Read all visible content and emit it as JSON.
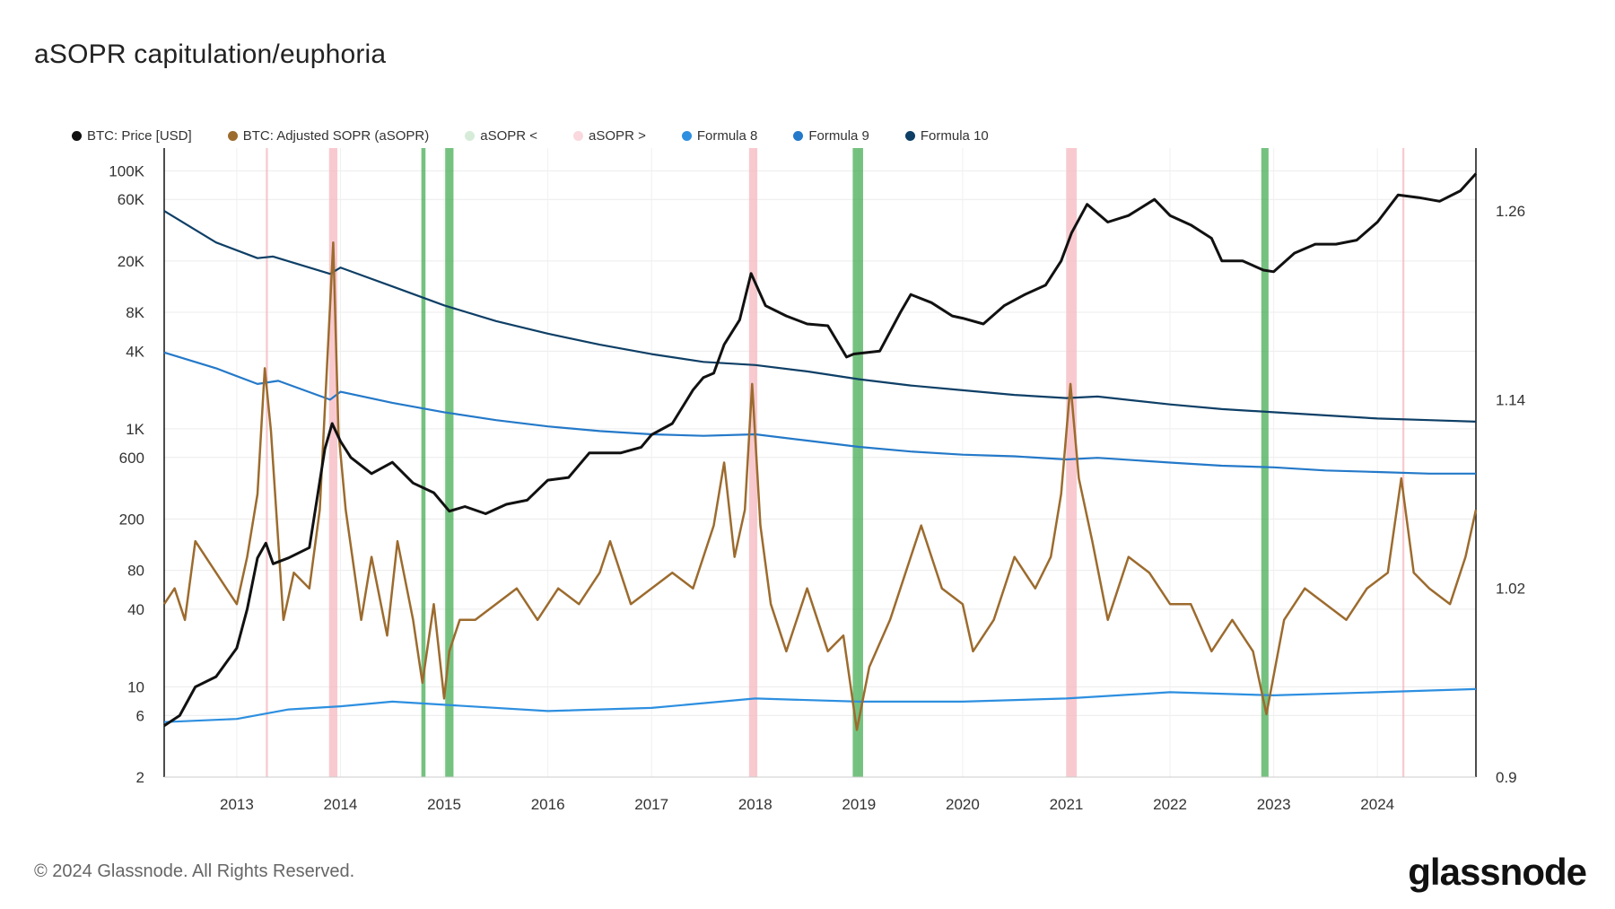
{
  "title": "aSOPR capitulation/euphoria",
  "footer": "© 2024 Glassnode. All Rights Reserved.",
  "brand": "glassnode",
  "legend": [
    {
      "label": "BTC: Price [USD]",
      "color": "#111111"
    },
    {
      "label": "BTC: Adjusted SOPR (aSOPR)",
      "color": "#9c6b2e"
    },
    {
      "label": "aSOPR <",
      "color": "#d6ecd8"
    },
    {
      "label": "aSOPR >",
      "color": "#f9d9dd"
    },
    {
      "label": "Formula 8",
      "color": "#2d8fe0"
    },
    {
      "label": "Formula 9",
      "color": "#2479c9"
    },
    {
      "label": "Formula 10",
      "color": "#0e3f66"
    }
  ],
  "chart_data": {
    "type": "line",
    "x_axis": {
      "ticks": [
        "2013",
        "2014",
        "2015",
        "2016",
        "2017",
        "2018",
        "2019",
        "2020",
        "2021",
        "2022",
        "2023",
        "2024"
      ],
      "range": [
        2012.3,
        2024.95
      ]
    },
    "y_left": {
      "scale": "log",
      "ticks": [
        "2",
        "6",
        "10",
        "40",
        "80",
        "200",
        "600",
        "1K",
        "4K",
        "8K",
        "20K",
        "60K",
        "100K"
      ],
      "tick_values": [
        2,
        6,
        10,
        40,
        80,
        200,
        600,
        1000,
        4000,
        8000,
        20000,
        60000,
        100000
      ],
      "range": [
        2,
        150000
      ]
    },
    "y_right": {
      "scale": "linear",
      "ticks": [
        "0.9",
        "1.02",
        "1.14",
        "1.26"
      ],
      "tick_values": [
        0.9,
        1.02,
        1.14,
        1.26
      ],
      "range": [
        0.9,
        1.3
      ]
    },
    "grid": true,
    "legend_position": "top-left",
    "green_bands": [
      [
        2014.78,
        2014.82
      ],
      [
        2015.01,
        2015.09
      ],
      [
        2018.94,
        2019.04
      ],
      [
        2022.88,
        2022.95
      ]
    ],
    "red_bands": [
      [
        2013.28,
        2013.3
      ],
      [
        2013.89,
        2013.97
      ],
      [
        2017.94,
        2018.02
      ],
      [
        2021.0,
        2021.1
      ],
      [
        2024.24,
        2024.26
      ]
    ],
    "series": [
      {
        "name": "BTC: Price [USD]",
        "axis": "left",
        "color": "#111111",
        "x": [
          2012.3,
          2012.45,
          2012.6,
          2012.8,
          2013.0,
          2013.1,
          2013.2,
          2013.28,
          2013.35,
          2013.5,
          2013.7,
          2013.85,
          2013.92,
          2014.0,
          2014.1,
          2014.3,
          2014.5,
          2014.7,
          2014.9,
          2015.05,
          2015.2,
          2015.4,
          2015.6,
          2015.8,
          2016.0,
          2016.2,
          2016.4,
          2016.5,
          2016.7,
          2016.9,
          2017.0,
          2017.2,
          2017.4,
          2017.5,
          2017.6,
          2017.7,
          2017.85,
          2017.96,
          2018.1,
          2018.3,
          2018.5,
          2018.7,
          2018.88,
          2018.95,
          2019.2,
          2019.4,
          2019.5,
          2019.7,
          2019.9,
          2020.0,
          2020.2,
          2020.4,
          2020.6,
          2020.8,
          2020.95,
          2021.05,
          2021.2,
          2021.4,
          2021.6,
          2021.85,
          2022.0,
          2022.2,
          2022.4,
          2022.5,
          2022.7,
          2022.9,
          2023.0,
          2023.2,
          2023.4,
          2023.6,
          2023.8,
          2024.0,
          2024.2,
          2024.4,
          2024.6,
          2024.8,
          2024.95
        ],
        "values": [
          5,
          6,
          10,
          12,
          20,
          40,
          100,
          130,
          90,
          100,
          120,
          700,
          1100,
          800,
          600,
          450,
          550,
          380,
          320,
          230,
          250,
          220,
          260,
          280,
          400,
          420,
          650,
          650,
          650,
          720,
          900,
          1100,
          2000,
          2500,
          2700,
          4500,
          7000,
          16000,
          9000,
          7500,
          6500,
          6300,
          3600,
          3800,
          4000,
          8000,
          11000,
          9500,
          7500,
          7200,
          6500,
          9000,
          11000,
          13000,
          20000,
          33000,
          55000,
          40000,
          45000,
          60000,
          45000,
          38000,
          30000,
          20000,
          20000,
          17000,
          16500,
          23000,
          27000,
          27000,
          29000,
          40000,
          65000,
          62000,
          58000,
          70000,
          95000
        ]
      },
      {
        "name": "BTC: Adjusted SOPR (aSOPR)",
        "axis": "right",
        "color": "#9c6b2e",
        "x": [
          2012.3,
          2012.4,
          2012.5,
          2012.6,
          2012.8,
          2012.9,
          2013.0,
          2013.1,
          2013.2,
          2013.27,
          2013.33,
          2013.45,
          2013.55,
          2013.7,
          2013.8,
          2013.9,
          2013.93,
          2013.98,
          2014.05,
          2014.2,
          2014.3,
          2014.45,
          2014.55,
          2014.7,
          2014.79,
          2014.9,
          2015.0,
          2015.05,
          2015.15,
          2015.3,
          2015.5,
          2015.7,
          2015.9,
          2016.1,
          2016.3,
          2016.5,
          2016.6,
          2016.8,
          2017.0,
          2017.2,
          2017.4,
          2017.6,
          2017.7,
          2017.8,
          2017.9,
          2017.97,
          2018.05,
          2018.15,
          2018.3,
          2018.5,
          2018.7,
          2018.85,
          2018.98,
          2019.1,
          2019.3,
          2019.5,
          2019.6,
          2019.8,
          2020.0,
          2020.1,
          2020.3,
          2020.5,
          2020.7,
          2020.85,
          2020.95,
          2021.04,
          2021.12,
          2021.25,
          2021.4,
          2021.6,
          2021.8,
          2022.0,
          2022.2,
          2022.4,
          2022.6,
          2022.8,
          2022.93,
          2023.1,
          2023.3,
          2023.5,
          2023.7,
          2023.9,
          2024.1,
          2024.23,
          2024.35,
          2024.5,
          2024.7,
          2024.85,
          2024.95
        ],
        "values": [
          1.01,
          1.02,
          1.0,
          1.05,
          1.03,
          1.02,
          1.01,
          1.04,
          1.08,
          1.16,
          1.12,
          1.0,
          1.03,
          1.02,
          1.07,
          1.2,
          1.24,
          1.12,
          1.07,
          1.0,
          1.04,
          0.99,
          1.05,
          1.0,
          0.96,
          1.01,
          0.95,
          0.98,
          1.0,
          1.0,
          1.01,
          1.02,
          1.0,
          1.02,
          1.01,
          1.03,
          1.05,
          1.01,
          1.02,
          1.03,
          1.02,
          1.06,
          1.1,
          1.04,
          1.07,
          1.15,
          1.06,
          1.01,
          0.98,
          1.02,
          0.98,
          0.99,
          0.93,
          0.97,
          1.0,
          1.04,
          1.06,
          1.02,
          1.01,
          0.98,
          1.0,
          1.04,
          1.02,
          1.04,
          1.08,
          1.15,
          1.09,
          1.05,
          1.0,
          1.04,
          1.03,
          1.01,
          1.01,
          0.98,
          1.0,
          0.98,
          0.94,
          1.0,
          1.02,
          1.01,
          1.0,
          1.02,
          1.03,
          1.09,
          1.03,
          1.02,
          1.01,
          1.04,
          1.07
        ]
      },
      {
        "name": "Formula 8",
        "axis": "right",
        "color": "#2d8fe0",
        "x": [
          2012.3,
          2013.0,
          2013.5,
          2014.0,
          2014.5,
          2015.0,
          2016.0,
          2017.0,
          2018.0,
          2019.0,
          2020.0,
          2021.0,
          2022.0,
          2023.0,
          2024.0,
          2024.95
        ],
        "values": [
          0.935,
          0.937,
          0.943,
          0.945,
          0.948,
          0.946,
          0.942,
          0.944,
          0.95,
          0.948,
          0.948,
          0.95,
          0.954,
          0.952,
          0.954,
          0.956
        ]
      },
      {
        "name": "Formula 9",
        "axis": "right",
        "color": "#2479c9",
        "x": [
          2012.3,
          2012.8,
          2013.2,
          2013.4,
          2013.9,
          2014.0,
          2014.5,
          2015.0,
          2015.5,
          2016.0,
          2016.5,
          2017.0,
          2017.5,
          2018.0,
          2018.5,
          2019.0,
          2019.5,
          2020.0,
          2020.5,
          2021.0,
          2021.3,
          2022.0,
          2022.5,
          2023.0,
          2023.5,
          2024.0,
          2024.5,
          2024.95
        ],
        "values": [
          1.17,
          1.16,
          1.15,
          1.152,
          1.14,
          1.145,
          1.138,
          1.132,
          1.127,
          1.123,
          1.12,
          1.118,
          1.117,
          1.118,
          1.114,
          1.11,
          1.107,
          1.105,
          1.104,
          1.102,
          1.103,
          1.1,
          1.098,
          1.097,
          1.095,
          1.094,
          1.093,
          1.093
        ]
      },
      {
        "name": "Formula 10",
        "axis": "right",
        "color": "#0e3f66",
        "x": [
          2012.3,
          2012.8,
          2013.2,
          2013.35,
          2013.9,
          2014.0,
          2014.5,
          2015.0,
          2015.5,
          2016.0,
          2016.5,
          2017.0,
          2017.5,
          2018.0,
          2018.5,
          2019.0,
          2019.5,
          2020.0,
          2020.5,
          2021.0,
          2021.3,
          2022.0,
          2022.5,
          2023.0,
          2023.5,
          2024.0,
          2024.5,
          2024.95
        ],
        "values": [
          1.26,
          1.24,
          1.23,
          1.231,
          1.22,
          1.224,
          1.212,
          1.2,
          1.19,
          1.182,
          1.175,
          1.169,
          1.164,
          1.162,
          1.158,
          1.153,
          1.149,
          1.146,
          1.143,
          1.141,
          1.142,
          1.137,
          1.134,
          1.132,
          1.13,
          1.128,
          1.127,
          1.126
        ]
      }
    ]
  }
}
